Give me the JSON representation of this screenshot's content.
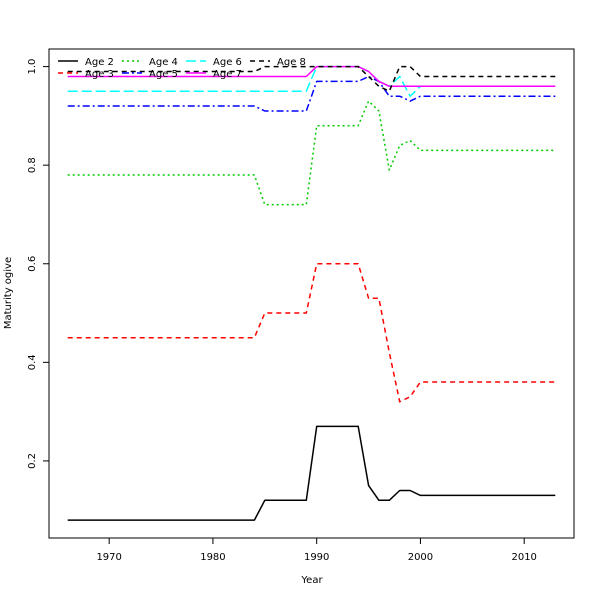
{
  "chart_data": {
    "type": "line",
    "title": "",
    "xlabel": "Year",
    "ylabel": "Maturity ogive",
    "xlim": [
      1964.2,
      2014.8
    ],
    "ylim": [
      0.0436,
      1.0357
    ],
    "xticks": [
      1970,
      1980,
      1990,
      2000,
      2010
    ],
    "yticks": [
      0.2,
      0.4,
      0.6,
      0.8,
      1.0
    ],
    "ytick_labels": [
      "0.2",
      "0.4",
      "0.6",
      "0.8",
      "1.0"
    ],
    "legend_position": "top-left",
    "x": [
      1966,
      1967,
      1968,
      1969,
      1970,
      1971,
      1972,
      1973,
      1974,
      1975,
      1976,
      1977,
      1978,
      1979,
      1980,
      1981,
      1982,
      1983,
      1984,
      1985,
      1986,
      1987,
      1988,
      1989,
      1990,
      1991,
      1992,
      1993,
      1994,
      1995,
      1996,
      1997,
      1998,
      1999,
      2000,
      2001,
      2002,
      2003,
      2004,
      2005,
      2006,
      2007,
      2008,
      2009,
      2010,
      2011,
      2012,
      2013
    ],
    "series": [
      {
        "name": "Age 2",
        "color": "#000000",
        "dash": "",
        "width": 1.5,
        "values": [
          0.08,
          0.08,
          0.08,
          0.08,
          0.08,
          0.08,
          0.08,
          0.08,
          0.08,
          0.08,
          0.08,
          0.08,
          0.08,
          0.08,
          0.08,
          0.08,
          0.08,
          0.08,
          0.08,
          0.12,
          0.12,
          0.12,
          0.12,
          0.12,
          0.27,
          0.27,
          0.27,
          0.27,
          0.27,
          0.15,
          0.12,
          0.12,
          0.14,
          0.14,
          0.13,
          0.13,
          0.13,
          0.13,
          0.13,
          0.13,
          0.13,
          0.13,
          0.13,
          0.13,
          0.13,
          0.13,
          0.13,
          0.13
        ]
      },
      {
        "name": "Age 3",
        "color": "#ff0000",
        "dash": "5,4",
        "width": 1.5,
        "values": [
          0.45,
          0.45,
          0.45,
          0.45,
          0.45,
          0.45,
          0.45,
          0.45,
          0.45,
          0.45,
          0.45,
          0.45,
          0.45,
          0.45,
          0.45,
          0.45,
          0.45,
          0.45,
          0.45,
          0.5,
          0.5,
          0.5,
          0.5,
          0.5,
          0.6,
          0.6,
          0.6,
          0.6,
          0.6,
          0.53,
          0.53,
          0.42,
          0.32,
          0.33,
          0.36,
          0.36,
          0.36,
          0.36,
          0.36,
          0.36,
          0.36,
          0.36,
          0.36,
          0.36,
          0.36,
          0.36,
          0.36,
          0.36
        ]
      },
      {
        "name": "Age 4",
        "color": "#00cd00",
        "dash": "2,3",
        "width": 1.5,
        "values": [
          0.78,
          0.78,
          0.78,
          0.78,
          0.78,
          0.78,
          0.78,
          0.78,
          0.78,
          0.78,
          0.78,
          0.78,
          0.78,
          0.78,
          0.78,
          0.78,
          0.78,
          0.78,
          0.78,
          0.72,
          0.72,
          0.72,
          0.72,
          0.72,
          0.88,
          0.88,
          0.88,
          0.88,
          0.88,
          0.93,
          0.91,
          0.79,
          0.84,
          0.85,
          0.83,
          0.83,
          0.83,
          0.83,
          0.83,
          0.83,
          0.83,
          0.83,
          0.83,
          0.83,
          0.83,
          0.83,
          0.83,
          0.83
        ]
      },
      {
        "name": "Age 5",
        "color": "#0000ff",
        "dash": "7,3,2,3",
        "width": 1.5,
        "values": [
          0.92,
          0.92,
          0.92,
          0.92,
          0.92,
          0.92,
          0.92,
          0.92,
          0.92,
          0.92,
          0.92,
          0.92,
          0.92,
          0.92,
          0.92,
          0.92,
          0.92,
          0.92,
          0.92,
          0.91,
          0.91,
          0.91,
          0.91,
          0.91,
          0.97,
          0.97,
          0.97,
          0.97,
          0.97,
          0.98,
          0.97,
          0.94,
          0.94,
          0.93,
          0.94,
          0.94,
          0.94,
          0.94,
          0.94,
          0.94,
          0.94,
          0.94,
          0.94,
          0.94,
          0.94,
          0.94,
          0.94,
          0.94
        ]
      },
      {
        "name": "Age 6",
        "color": "#00ffff",
        "dash": "10,4",
        "width": 1.5,
        "values": [
          0.95,
          0.95,
          0.95,
          0.95,
          0.95,
          0.95,
          0.95,
          0.95,
          0.95,
          0.95,
          0.95,
          0.95,
          0.95,
          0.95,
          0.95,
          0.95,
          0.95,
          0.95,
          0.95,
          0.95,
          0.95,
          0.95,
          0.95,
          0.95,
          1.0,
          1.0,
          1.0,
          1.0,
          1.0,
          0.99,
          0.97,
          0.96,
          0.98,
          0.94,
          0.96,
          0.96,
          0.96,
          0.96,
          0.96,
          0.96,
          0.96,
          0.96,
          0.96,
          0.96,
          0.96,
          0.96,
          0.96,
          0.96
        ]
      },
      {
        "name": "Age 7",
        "color": "#ff00ff",
        "dash": "",
        "width": 1.5,
        "values": [
          0.98,
          0.98,
          0.98,
          0.98,
          0.98,
          0.98,
          0.98,
          0.98,
          0.98,
          0.98,
          0.98,
          0.98,
          0.98,
          0.98,
          0.98,
          0.98,
          0.98,
          0.98,
          0.98,
          0.98,
          0.98,
          0.98,
          0.98,
          0.98,
          1.0,
          1.0,
          1.0,
          1.0,
          1.0,
          0.99,
          0.97,
          0.96,
          0.96,
          0.96,
          0.96,
          0.96,
          0.96,
          0.96,
          0.96,
          0.96,
          0.96,
          0.96,
          0.96,
          0.96,
          0.96,
          0.96,
          0.96,
          0.96
        ]
      },
      {
        "name": "Age 8",
        "color": "#000000",
        "dash": "5,4",
        "width": 1.5,
        "values": [
          0.99,
          0.99,
          0.99,
          0.99,
          0.99,
          0.99,
          0.99,
          0.99,
          0.99,
          0.99,
          0.99,
          0.99,
          0.99,
          0.99,
          0.99,
          0.99,
          0.99,
          0.99,
          0.99,
          1.0,
          1.0,
          1.0,
          1.0,
          1.0,
          1.0,
          1.0,
          1.0,
          1.0,
          1.0,
          0.98,
          0.96,
          0.95,
          1.0,
          1.0,
          0.98,
          0.98,
          0.98,
          0.98,
          0.98,
          0.98,
          0.98,
          0.98,
          0.98,
          0.98,
          0.98,
          0.98,
          0.98,
          0.98
        ]
      }
    ]
  }
}
